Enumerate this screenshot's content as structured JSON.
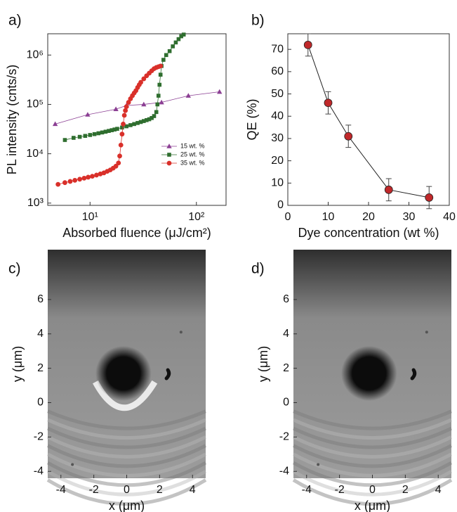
{
  "chart_data": [
    {
      "type": "line",
      "panel": "a)",
      "xlabel": "Absorbed fluence (μJ/cm²)",
      "ylabel": "PL intensity (cnts/s)",
      "xscale": "log",
      "yscale": "log",
      "xlim": [
        4,
        190
      ],
      "ylim": [
        900,
        2700000
      ],
      "xticks": [
        {
          "value": 10,
          "label": "10¹"
        },
        {
          "value": 100,
          "label": "10²"
        }
      ],
      "yticks": [
        {
          "value": 1000,
          "label": "10³"
        },
        {
          "value": 10000,
          "label": "10⁴"
        },
        {
          "value": 100000,
          "label": "10⁵"
        },
        {
          "value": 1000000,
          "label": "10⁶"
        }
      ],
      "legend": "right",
      "series": [
        {
          "name": "15 wt. %",
          "color": "#8b3f93",
          "marker": "triangle",
          "x": [
            4.7,
            9.5,
            17.5,
            22,
            32,
            47,
            84,
            165
          ],
          "values": [
            40000,
            62000,
            80000,
            95000,
            100000,
            110000,
            150000,
            180000
          ]
        },
        {
          "name": "25 wt. %",
          "color": "#2f6e2f",
          "marker": "square",
          "x": [
            5.8,
            7,
            8,
            9,
            10,
            11,
            12,
            13,
            14,
            15,
            16,
            17,
            18,
            20,
            22,
            24,
            26,
            28,
            30,
            32,
            34,
            36,
            38,
            40,
            42,
            43,
            44,
            45,
            46,
            47,
            49,
            52,
            56,
            60,
            64,
            68,
            72,
            76
          ],
          "values": [
            19000,
            21000,
            22000,
            23000,
            24000,
            25000,
            26000,
            27000,
            28000,
            29000,
            30000,
            31000,
            32000,
            34000,
            36000,
            38000,
            40000,
            42000,
            44000,
            46000,
            48000,
            50000,
            53000,
            58000,
            70000,
            100000,
            150000,
            250000,
            400000,
            600000,
            800000,
            1000000,
            1200000,
            1500000,
            1800000,
            2100000,
            2400000,
            2600000
          ]
        },
        {
          "name": "35 wt. %",
          "color": "#d9302a",
          "marker": "circle",
          "x": [
            5,
            5.8,
            6.5,
            7.2,
            8,
            8.8,
            9.6,
            10.5,
            11.5,
            12.5,
            13.5,
            14.5,
            15.5,
            16.5,
            17.5,
            18.5,
            19,
            19.5,
            20,
            20.5,
            21,
            21.5,
            22,
            23,
            24,
            25,
            26,
            27,
            28,
            29,
            30,
            32,
            34,
            36,
            38,
            40,
            42,
            44,
            46
          ],
          "values": [
            2400,
            2600,
            2750,
            2900,
            3050,
            3200,
            3350,
            3500,
            3700,
            3900,
            4100,
            4400,
            4700,
            5100,
            5600,
            6500,
            9000,
            15000,
            25000,
            40000,
            60000,
            75000,
            90000,
            110000,
            130000,
            150000,
            170000,
            190000,
            220000,
            250000,
            280000,
            330000,
            380000,
            430000,
            480000,
            530000,
            560000,
            580000,
            600000
          ]
        }
      ]
    },
    {
      "type": "line",
      "panel": "b)",
      "xlabel": "Dye concentration (wt %)",
      "ylabel": "QE (%)",
      "xlim": [
        0,
        40
      ],
      "ylim": [
        0,
        77
      ],
      "xticks": [
        0,
        10,
        20,
        30,
        40
      ],
      "yticks": [
        0,
        10,
        20,
        30,
        40,
        50,
        60,
        70
      ],
      "series": [
        {
          "color": "#c0282a",
          "marker": "circle",
          "x": [
            5,
            10,
            15,
            25,
            35
          ],
          "values": [
            72,
            46,
            31,
            7,
            3.5
          ],
          "errors": [
            5,
            5,
            5,
            5,
            5
          ]
        }
      ]
    },
    {
      "type": "image",
      "panel": "c)",
      "xlabel": "x (μm)",
      "ylabel": "y (μm)",
      "xlim": [
        -4.8,
        4.8
      ],
      "ylim": [
        -4.4,
        8.9
      ],
      "xticks": [
        -4,
        -2,
        0,
        2,
        4
      ],
      "yticks": [
        -4,
        -2,
        0,
        2,
        4,
        6
      ]
    },
    {
      "type": "image",
      "panel": "d)",
      "xlabel": "x (μm)",
      "ylabel": "y (μm)",
      "xlim": [
        -4.8,
        4.8
      ],
      "ylim": [
        -4.4,
        8.9
      ],
      "xticks": [
        -4,
        -2,
        0,
        2,
        4
      ],
      "yticks": [
        -4,
        -2,
        0,
        2,
        4,
        6
      ]
    }
  ]
}
